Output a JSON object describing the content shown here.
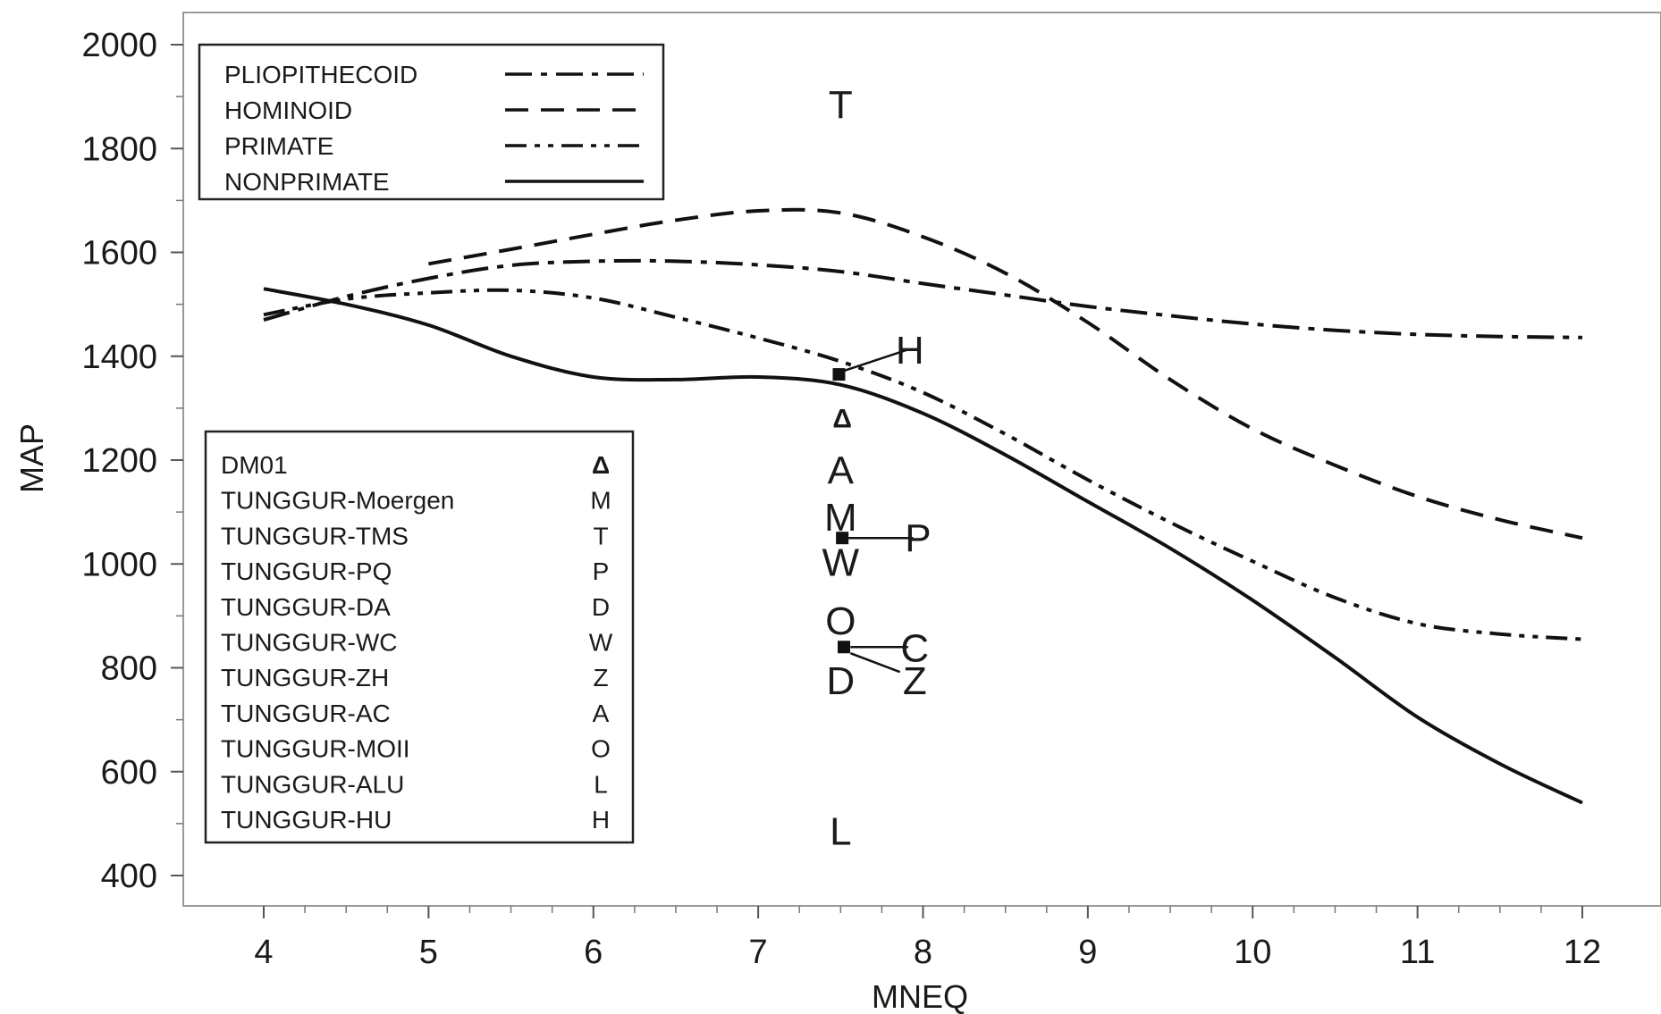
{
  "chart_data": {
    "type": "line",
    "xlabel": "MNEQ",
    "ylabel": "MAP",
    "xlim": [
      3.5,
      12.5
    ],
    "ylim": [
      345,
      2055
    ],
    "x_ticks": [
      4,
      5,
      6,
      7,
      8,
      9,
      10,
      11,
      12
    ],
    "x_tick_labels": [
      "4",
      "5",
      "6",
      "7",
      "8",
      "9",
      "10",
      "11",
      "12"
    ],
    "y_ticks": [
      400,
      600,
      800,
      1000,
      1200,
      1400,
      1600,
      1800,
      2000
    ],
    "y_tick_labels": [
      "400",
      "600",
      "800",
      "1000",
      "1200",
      "1400",
      "1600",
      "1800",
      "2000"
    ],
    "grid": false,
    "legend_position": "top-left",
    "series": [
      {
        "name": "PLIOPITHECOID",
        "dash": "dash-dot",
        "x": [
          4,
          4.5,
          5,
          5.5,
          6,
          6.5,
          7,
          7.5,
          8,
          8.5,
          9,
          9.5,
          10,
          10.5,
          11,
          11.5,
          12
        ],
        "y": [
          1470,
          1515,
          1550,
          1575,
          1583,
          1583,
          1576,
          1563,
          1540,
          1518,
          1496,
          1478,
          1462,
          1450,
          1442,
          1438,
          1436
        ]
      },
      {
        "name": "HOMINOID",
        "dash": "dashed",
        "x": [
          5,
          5.5,
          6,
          6.5,
          7,
          7.5,
          8,
          8.5,
          9,
          9.5,
          10,
          10.5,
          11,
          11.5,
          12
        ],
        "y": [
          1578,
          1606,
          1635,
          1662,
          1680,
          1676,
          1630,
          1560,
          1465,
          1355,
          1260,
          1190,
          1130,
          1085,
          1050
        ]
      },
      {
        "name": "PRIMATE",
        "dash": "dash-dot-dot",
        "x": [
          4,
          4.5,
          5,
          5.5,
          6,
          6.5,
          7,
          7.5,
          8,
          8.5,
          9,
          9.5,
          10,
          10.5,
          11,
          11.5,
          12
        ],
        "y": [
          1480,
          1510,
          1522,
          1527,
          1512,
          1475,
          1435,
          1390,
          1330,
          1250,
          1162,
          1080,
          1005,
          935,
          885,
          865,
          855
        ]
      },
      {
        "name": "NONPRIMATE",
        "dash": "solid",
        "x": [
          4,
          4.5,
          5,
          5.5,
          6,
          6.5,
          7,
          7.5,
          8,
          8.5,
          9,
          9.5,
          10,
          10.5,
          11,
          11.5,
          12
        ],
        "y": [
          1530,
          1500,
          1460,
          1400,
          1360,
          1355,
          1360,
          1345,
          1290,
          1210,
          1120,
          1030,
          930,
          820,
          705,
          615,
          540
        ]
      }
    ],
    "site_markers": [
      {
        "label": "T",
        "x": 7.5,
        "y": 1885
      },
      {
        "label": "H",
        "x": 7.92,
        "y": 1412
      },
      {
        "label": "Δ",
        "x": 7.51,
        "y": 1280,
        "color": "#d9232e"
      },
      {
        "label": "A",
        "x": 7.5,
        "y": 1180
      },
      {
        "label": "M",
        "x": 7.5,
        "y": 1090
      },
      {
        "label": "P",
        "x": 7.97,
        "y": 1050
      },
      {
        "label": "W",
        "x": 7.5,
        "y": 1003
      },
      {
        "label": "O",
        "x": 7.5,
        "y": 890
      },
      {
        "label": "C",
        "x": 7.95,
        "y": 838
      },
      {
        "label": "D",
        "x": 7.5,
        "y": 775
      },
      {
        "label": "Z",
        "x": 7.95,
        "y": 775
      },
      {
        "label": "L",
        "x": 7.5,
        "y": 485
      }
    ],
    "site_points": [
      {
        "x": 7.49,
        "y": 1365
      },
      {
        "x": 7.51,
        "y": 1050
      },
      {
        "x": 7.52,
        "y": 840
      }
    ],
    "site_legend": [
      {
        "name": "DM01",
        "symbol": "Δ",
        "color": "#d9232e"
      },
      {
        "name": "TUNGGUR-Moergen",
        "symbol": "M"
      },
      {
        "name": "TUNGGUR-TMS",
        "symbol": "T"
      },
      {
        "name": "TUNGGUR-PQ",
        "symbol": "P"
      },
      {
        "name": "TUNGGUR-DA",
        "symbol": "D"
      },
      {
        "name": "TUNGGUR-WC",
        "symbol": "W"
      },
      {
        "name": "TUNGGUR-ZH",
        "symbol": "Z"
      },
      {
        "name": "TUNGGUR-AC",
        "symbol": "A"
      },
      {
        "name": "TUNGGUR-MOII",
        "symbol": "O"
      },
      {
        "name": "TUNGGUR-ALU",
        "symbol": "L"
      },
      {
        "name": "TUNGGUR-HU",
        "symbol": "H"
      }
    ]
  }
}
